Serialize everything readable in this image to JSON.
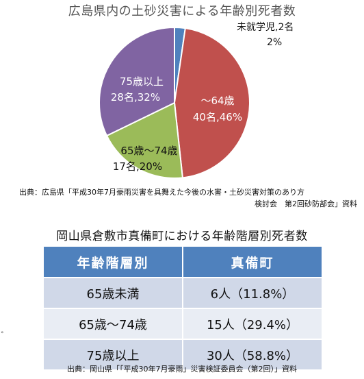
{
  "chart_data": [
    {
      "type": "pie",
      "title": "広島県内の土砂災害による年齢別死者数",
      "slices": [
        {
          "label": "未就学児",
          "count_text": "2名",
          "percent_text": "2%",
          "value": 2,
          "color": "#4f81bd"
        },
        {
          "label": "～64歳",
          "count_text": "40名",
          "percent_text": "46%",
          "value": 40,
          "color": "#c0504d"
        },
        {
          "label": "65歳～74歳",
          "count_text": "17名",
          "percent_text": "20%",
          "value": 17,
          "color": "#9bbb59"
        },
        {
          "label": "75歳以上",
          "count_text": "28名",
          "percent_text": "32%",
          "value": 28,
          "color": "#8064a2"
        }
      ]
    },
    {
      "type": "table",
      "title": "岡山県倉敷市真備町における年齢階層別死者数",
      "columns": [
        "年齢階層別",
        "真備町"
      ],
      "rows": [
        [
          "65歳未満",
          "6人（11.8%）"
        ],
        [
          "65歳～74歳",
          "15人（29.4%）"
        ],
        [
          "75歳以上",
          "30人（58.8%）"
        ]
      ]
    }
  ],
  "pie_labels": {
    "slice0_line1": "未就学児,2名",
    "slice0_line2": "2%",
    "slice1_line1": "～64歳",
    "slice1_line2": "40名,46%",
    "slice2_line1": "65歳～74歳",
    "slice2_line2": "17名,20%",
    "slice3_line1": "75歳以上",
    "slice3_line2": "28名,32%"
  },
  "source_hiroshima": {
    "line1": "出典：広島県「平成30年7月豪雨災害を具舞えた今後の水害・土砂災害対策のあり方",
    "line2": "検討会　第2回砂防部会」資料"
  },
  "source_okayama": "出典：岡山県「「平成30年7月豪雨」災害検証委員会（第2回）」資料",
  "stray_mark": "°"
}
